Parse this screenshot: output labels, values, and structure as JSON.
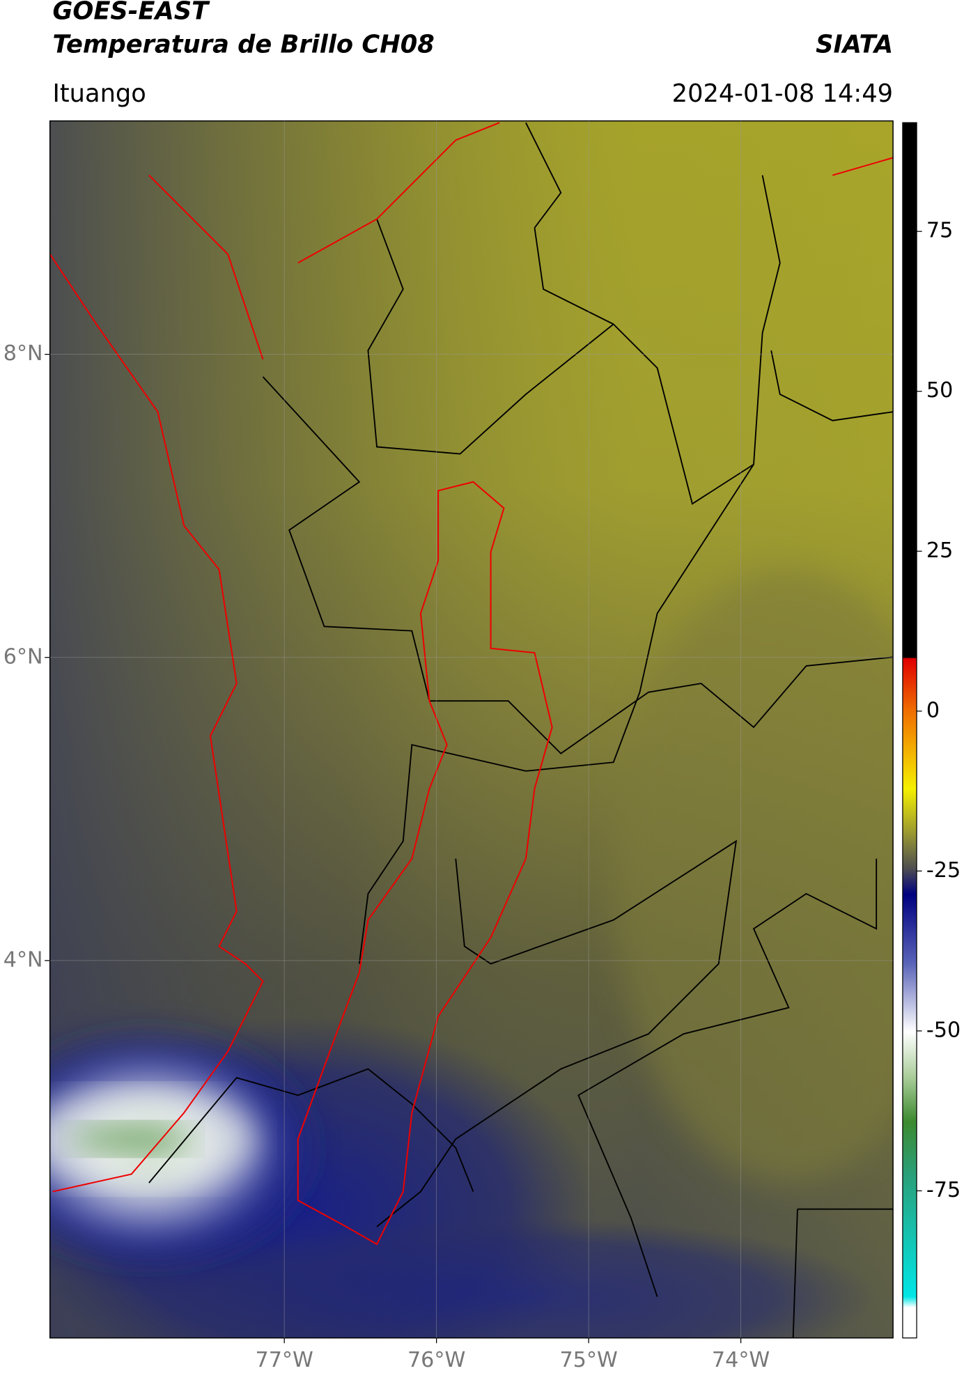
{
  "header": {
    "title": "GOES-EAST",
    "subtitle": "Temperatura de Brillo CH08",
    "brand": "SIATA",
    "location": "Ituango",
    "datetime": "2024-01-08 14:49"
  },
  "map": {
    "xlim": [
      -78.54,
      -73.0
    ],
    "ylim": [
      1.51,
      9.54
    ],
    "xticks": [
      {
        "value": -77,
        "label": "77°W"
      },
      {
        "value": -76,
        "label": "76°W"
      },
      {
        "value": -75,
        "label": "75°W"
      },
      {
        "value": -74,
        "label": "74°W"
      }
    ],
    "yticks": [
      {
        "value": 8,
        "label": "8°N"
      },
      {
        "value": 6,
        "label": "6°N"
      },
      {
        "value": 4,
        "label": "4°N"
      }
    ]
  },
  "colorbar": {
    "lim": [
      -98,
      92
    ],
    "ticks": [
      75,
      50,
      25,
      0,
      -25,
      -50,
      -75
    ]
  }
}
